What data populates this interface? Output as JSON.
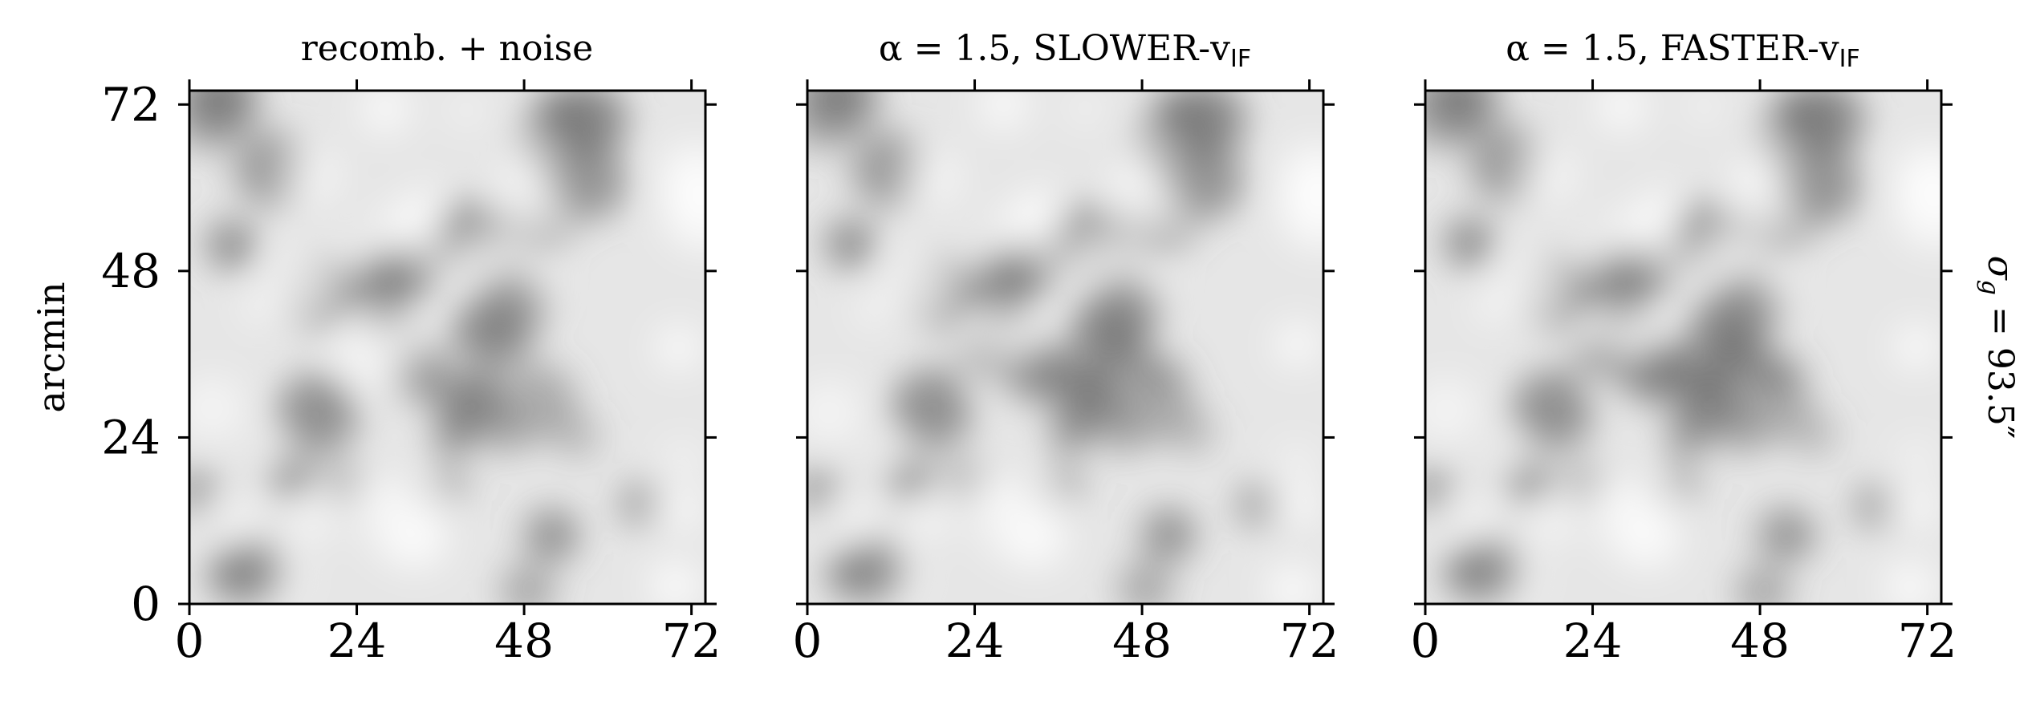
{
  "chart_data": [
    {
      "type": "heatmap",
      "title": "recomb. + noise",
      "xlabel": "",
      "ylabel": "arcmin",
      "xlim": [
        0,
        74
      ],
      "ylim": [
        0,
        74
      ],
      "xticks": [
        0,
        24,
        48,
        72
      ],
      "yticks": [
        0,
        24,
        48,
        72
      ],
      "xtick_labels": [
        "0",
        "24",
        "48",
        "72"
      ],
      "ytick_labels": [
        "0",
        "24",
        "48",
        "72"
      ],
      "colormap": "grayscale",
      "structure_seed": 1
    },
    {
      "type": "heatmap",
      "title_prefix": "α = 1.5, SLOWER-v",
      "title_subscript": "IF",
      "xlim": [
        0,
        74
      ],
      "ylim": [
        0,
        74
      ],
      "xticks": [
        0,
        24,
        48,
        72
      ],
      "xtick_labels": [
        "0",
        "24",
        "48",
        "72"
      ],
      "colormap": "grayscale",
      "structure_seed": 2
    },
    {
      "type": "heatmap",
      "title_prefix": "α = 1.5, FASTER-v",
      "title_subscript": "IF",
      "xlim": [
        0,
        74
      ],
      "ylim": [
        0,
        74
      ],
      "xticks": [
        0,
        24,
        48,
        72
      ],
      "xtick_labels": [
        "0",
        "24",
        "48",
        "72"
      ],
      "colormap": "grayscale",
      "structure_seed": 3
    }
  ],
  "right_label": "σg = 93.5″",
  "right_label_parts": {
    "sigma": "σ",
    "sub": "g",
    "rest": " = 93.5″"
  }
}
